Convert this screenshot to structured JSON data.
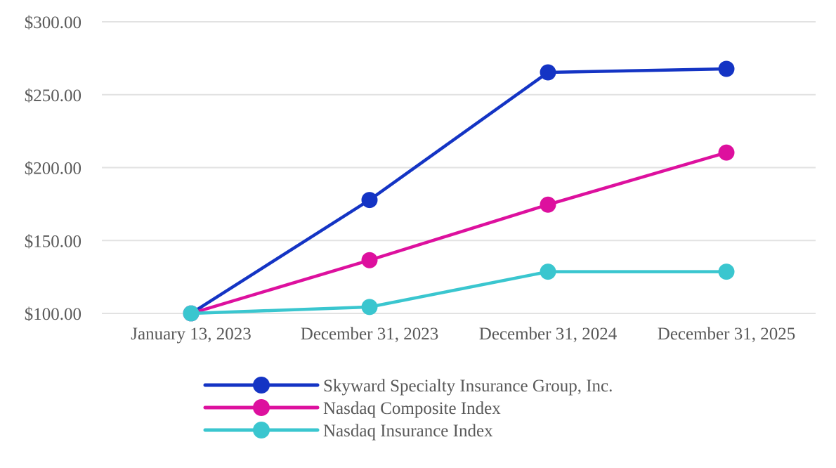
{
  "chart_data": {
    "type": "line",
    "title": "",
    "categories": [
      "January 13, 2023",
      "December 31, 2023",
      "December 31, 2024",
      "December 31, 2025"
    ],
    "series": [
      {
        "name": "Skyward Specialty Insurance Group, Inc.",
        "color": "#1434C4",
        "values": [
          100.0,
          177.8,
          265.3,
          267.7
        ]
      },
      {
        "name": "Nasdaq Composite Index",
        "color": "#DD109E",
        "values": [
          100.0,
          136.5,
          174.6,
          210.3
        ]
      },
      {
        "name": "Nasdaq Insurance Index",
        "color": "#3AC6CF",
        "values": [
          100.0,
          104.4,
          128.6,
          128.6
        ]
      }
    ],
    "y_axis": {
      "min": 100,
      "max": 300,
      "tick_step": 50,
      "ticks": [
        {
          "value": 100,
          "label": "$100.00"
        },
        {
          "value": 150,
          "label": "$150.00"
        },
        {
          "value": 200,
          "label": "$200.00"
        },
        {
          "value": 250,
          "label": "$250.00"
        },
        {
          "value": 300,
          "label": "$300.00"
        }
      ]
    },
    "grid": true,
    "legend_position": "bottom-left",
    "marker": "circle"
  },
  "styles": {
    "text_color": "#595959",
    "grid_color": "#E2E2E2",
    "background": "#FFFFFF"
  }
}
